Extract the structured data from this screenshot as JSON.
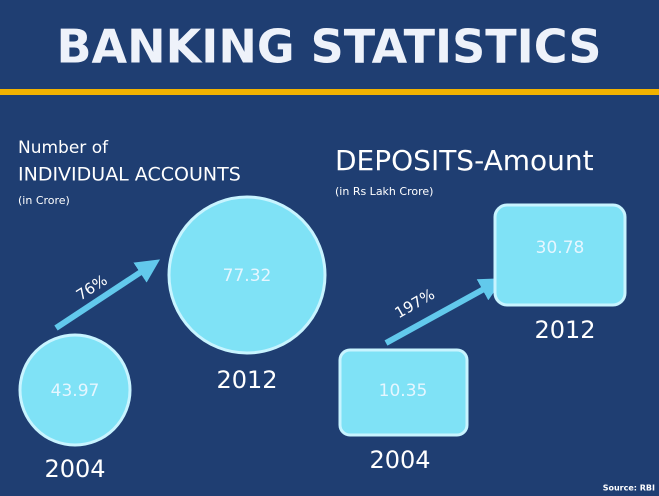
{
  "title": "BANKING STATISTICS",
  "accounts": {
    "heading": [
      "Number of",
      "INDIVIDUAL ACCOUNTS"
    ],
    "unit": "(in Crore)",
    "growth": "76%",
    "items": [
      {
        "year": 2004,
        "value": 43.97
      },
      {
        "year": 2012,
        "value": 77.32
      }
    ]
  },
  "deposits": {
    "heading": "DEPOSITS-Amount",
    "unit": "(in Rs Lakh Crore)",
    "growth": "197%",
    "items": [
      {
        "year": 2004,
        "value": 10.35
      },
      {
        "year": 2012,
        "value": 30.78
      }
    ]
  },
  "source": "Source: RBI"
}
